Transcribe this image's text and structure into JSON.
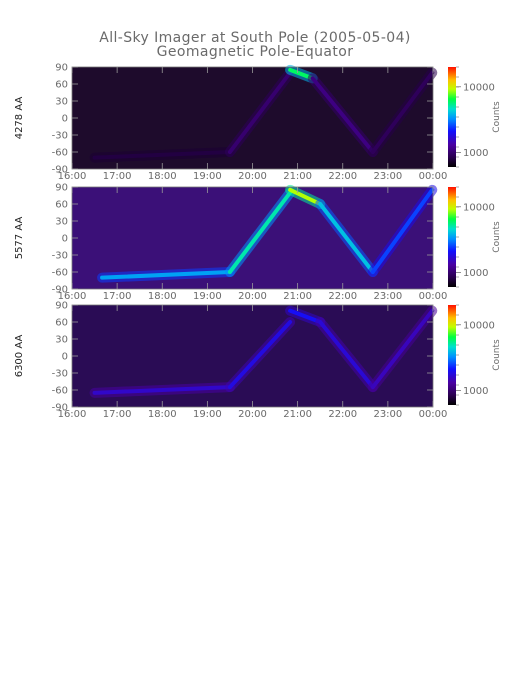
{
  "title": "All-Sky Imager at South Pole (2005-05-04)",
  "subtitle": "Geomagnetic Pole-Equator",
  "chart_data": [
    {
      "type": "heatmap",
      "ylabel": "4278 AA",
      "x_ticks": [
        "16:00",
        "17:00",
        "18:00",
        "19:00",
        "20:00",
        "21:00",
        "22:00",
        "23:00",
        "00:00"
      ],
      "y_ticks": [
        90,
        60,
        30,
        0,
        -30,
        -60,
        -90
      ],
      "xlim": [
        "16:00",
        "00:00"
      ],
      "ylim": [
        -90,
        90
      ],
      "colorbar": {
        "label": "Counts",
        "scale": "log",
        "ticks": [
          {
            "label": "10000",
            "value": 10000
          },
          {
            "label": "1000",
            "value": 1000
          }
        ],
        "range": [
          600,
          20000
        ]
      },
      "background_level": 700,
      "features": [
        {
          "t_start": "16:30",
          "t_end": "19:30",
          "lat_start": -70,
          "lat_end": -60,
          "level": 800
        },
        {
          "t_start": "19:30",
          "t_end": "20:50",
          "lat_start": -60,
          "lat_end": 80,
          "level": 1000
        },
        {
          "t_start": "20:50",
          "t_end": "21:20",
          "lat_start": 85,
          "lat_end": 70,
          "level": 6000
        },
        {
          "t_start": "21:20",
          "t_end": "22:40",
          "lat_start": 70,
          "lat_end": -60,
          "level": 1100
        },
        {
          "t_start": "22:40",
          "t_end": "23:59",
          "lat_start": -60,
          "lat_end": 80,
          "level": 900
        }
      ]
    },
    {
      "type": "heatmap",
      "ylabel": "5577 AA",
      "x_ticks": [
        "16:00",
        "17:00",
        "18:00",
        "19:00",
        "20:00",
        "21:00",
        "22:00",
        "23:00",
        "00:00"
      ],
      "y_ticks": [
        90,
        60,
        30,
        0,
        -30,
        -60,
        -90
      ],
      "xlim": [
        "16:00",
        "00:00"
      ],
      "ylim": [
        -90,
        90
      ],
      "colorbar": {
        "label": "Counts",
        "scale": "log",
        "ticks": [
          {
            "label": "10000",
            "value": 10000
          },
          {
            "label": "1000",
            "value": 1000
          }
        ],
        "range": [
          600,
          20000
        ]
      },
      "background_level": 900,
      "features": [
        {
          "t_start": "16:40",
          "t_end": "19:30",
          "lat_start": -70,
          "lat_end": -60,
          "level": 3500
        },
        {
          "t_start": "19:30",
          "t_end": "20:50",
          "lat_start": -60,
          "lat_end": 80,
          "level": 5000
        },
        {
          "t_start": "20:50",
          "t_end": "21:30",
          "lat_start": 85,
          "lat_end": 60,
          "level": 9000
        },
        {
          "t_start": "21:30",
          "t_end": "22:40",
          "lat_start": 60,
          "lat_end": -60,
          "level": 4000
        },
        {
          "t_start": "22:40",
          "t_end": "23:59",
          "lat_start": -60,
          "lat_end": 85,
          "level": 2500
        }
      ]
    },
    {
      "type": "heatmap",
      "ylabel": "6300 AA",
      "x_ticks": [
        "16:00",
        "17:00",
        "18:00",
        "19:00",
        "20:00",
        "21:00",
        "22:00",
        "23:00",
        "00:00"
      ],
      "y_ticks": [
        90,
        60,
        30,
        0,
        -30,
        -60,
        -90
      ],
      "xlim": [
        "16:00",
        "00:00"
      ],
      "ylim": [
        -90,
        90
      ],
      "colorbar": {
        "label": "Counts",
        "scale": "log",
        "ticks": [
          {
            "label": "10000",
            "value": 10000
          },
          {
            "label": "1000",
            "value": 1000
          }
        ],
        "range": [
          600,
          20000
        ]
      },
      "background_level": 900,
      "features": [
        {
          "t_start": "16:30",
          "t_end": "19:30",
          "lat_start": -65,
          "lat_end": -55,
          "level": 1600
        },
        {
          "t_start": "19:30",
          "t_end": "20:50",
          "lat_start": -55,
          "lat_end": 60,
          "level": 1800
        },
        {
          "t_start": "20:50",
          "t_end": "21:30",
          "lat_start": 80,
          "lat_end": 60,
          "level": 2000
        },
        {
          "t_start": "21:30",
          "t_end": "22:40",
          "lat_start": 60,
          "lat_end": -55,
          "level": 1700
        },
        {
          "t_start": "22:40",
          "t_end": "23:59",
          "lat_start": -55,
          "lat_end": 80,
          "level": 1500
        }
      ]
    }
  ]
}
